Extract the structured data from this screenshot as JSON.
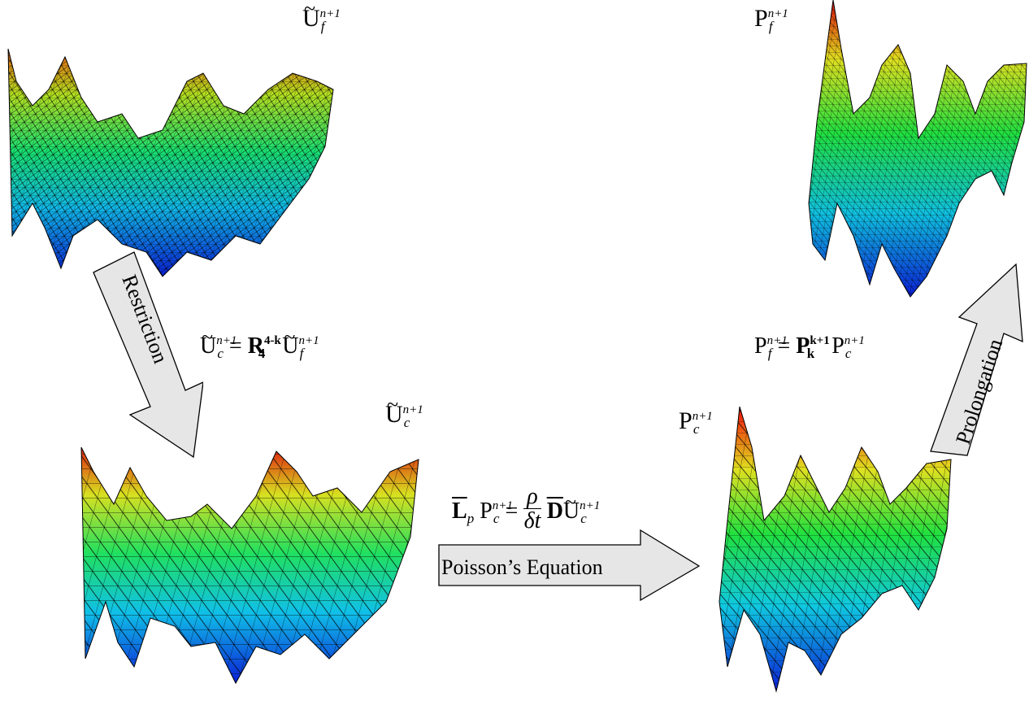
{
  "labels": {
    "uf_tilde": {
      "base": "U",
      "sup": "n+1",
      "sub": "f"
    },
    "uc_tilde": {
      "base": "U",
      "sup": "n+1",
      "sub": "c"
    },
    "pf": {
      "base": "P",
      "sup": "n+1",
      "sub": "f"
    },
    "pc": {
      "base": "P",
      "sup": "n+1",
      "sub": "c"
    }
  },
  "arrows": {
    "restriction": "Restriction",
    "poisson": "Poisson’s Equation",
    "prolongation": "Prolongation"
  },
  "equations": {
    "restriction": {
      "lhs_base": "U",
      "lhs_sup": "n+1",
      "lhs_sub": "c",
      "op_base": "R",
      "op_sub": "4",
      "op_sup": "4-k",
      "rhs_base": "U",
      "rhs_sup": "n+1",
      "rhs_sub": "f",
      "equals": "="
    },
    "prolongation": {
      "lhs_base": "P",
      "lhs_sup": "n+1",
      "lhs_sub": "f",
      "op_base": "P",
      "op_sub": "k",
      "op_sup": "k+1",
      "rhs_base": "P",
      "rhs_sup": "n+1",
      "rhs_sub": "c",
      "equals": "="
    },
    "poisson": {
      "L": "L",
      "L_sub": "p",
      "P": "P",
      "P_sup": "n+1",
      "P_sub": "c",
      "equals": "=",
      "num": "ρ",
      "den": "δt",
      "D": "D",
      "U": "U",
      "U_sup": "n+1",
      "U_sub": "c"
    }
  },
  "colors": {
    "arrow_fill": "#e6e6e6",
    "arrow_stroke": "#000000",
    "surface_low": "#0a1fd6",
    "surface_mid": "#10e0e0",
    "surface_high": "#22e022",
    "surface_peak": "#f00a0a"
  }
}
